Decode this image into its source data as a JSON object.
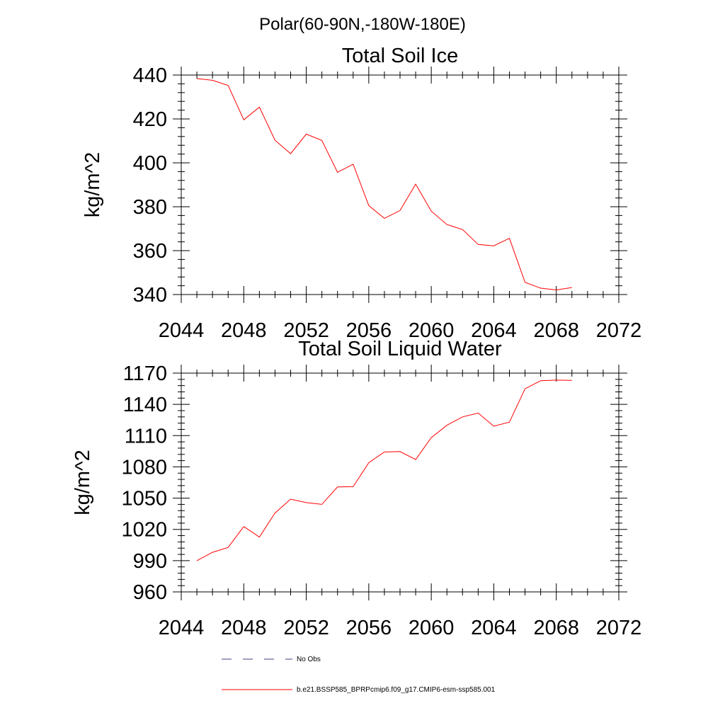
{
  "figure": {
    "suptitle": "Polar(60-90N,-180W-180E)"
  },
  "chart_data": [
    {
      "type": "line",
      "title": "Total Soil Ice",
      "xlabel": "",
      "ylabel": "kg/m^2",
      "xlim": [
        2044,
        2072
      ],
      "ylim": [
        340,
        440
      ],
      "xticks": [
        2044,
        2048,
        2052,
        2056,
        2060,
        2064,
        2068,
        2072
      ],
      "yticks": [
        340,
        360,
        380,
        400,
        420,
        440
      ],
      "grid": false,
      "series": [
        {
          "name": "b.e21.BSSP585_BPRPcmip6.f09_g17.CMIP6-esm-ssp585.001",
          "color": "#ff0000",
          "x": [
            2045,
            2046,
            2047,
            2048,
            2049,
            2050,
            2051,
            2052,
            2053,
            2054,
            2055,
            2056,
            2057,
            2058,
            2059,
            2060,
            2061,
            2062,
            2063,
            2064,
            2065,
            2066,
            2067,
            2068,
            2069
          ],
          "y": [
            438.4,
            437.6,
            435.3,
            419.6,
            425.4,
            410.3,
            404.2,
            413.1,
            410.2,
            395.7,
            399.4,
            380.5,
            374.7,
            378.3,
            390.3,
            378.0,
            371.9,
            369.6,
            362.8,
            362.2,
            365.6,
            345.5,
            342.9,
            342.1,
            343.2
          ]
        }
      ]
    },
    {
      "type": "line",
      "title": "Total Soil Liquid Water",
      "xlabel": "",
      "ylabel": "kg/m^2",
      "xlim": [
        2044,
        2072
      ],
      "ylim": [
        960,
        1170
      ],
      "xticks": [
        2044,
        2048,
        2052,
        2056,
        2060,
        2064,
        2068,
        2072
      ],
      "yticks": [
        960,
        990,
        1020,
        1050,
        1080,
        1110,
        1140,
        1170
      ],
      "grid": false,
      "series": [
        {
          "name": "b.e21.BSSP585_BPRPcmip6.f09_g17.CMIP6-esm-ssp585.001",
          "color": "#ff0000",
          "x": [
            2045,
            2046,
            2047,
            2048,
            2049,
            2050,
            2051,
            2052,
            2053,
            2054,
            2055,
            2056,
            2057,
            2058,
            2059,
            2060,
            2061,
            2062,
            2063,
            2064,
            2065,
            2066,
            2067,
            2068,
            2069
          ],
          "y": [
            990.0,
            998.0,
            1002.7,
            1022.7,
            1012.7,
            1035.7,
            1049.0,
            1045.7,
            1044.0,
            1060.7,
            1061.0,
            1084.0,
            1094.3,
            1094.7,
            1087.0,
            1108.0,
            1120.0,
            1128.0,
            1131.7,
            1119.0,
            1123.0,
            1155.0,
            1162.7,
            1163.3,
            1163.0
          ]
        }
      ]
    }
  ],
  "legend": {
    "placement": "bottom",
    "entries": [
      {
        "label": "No Obs",
        "style": "dashed",
        "color": "#3f3f7f"
      },
      {
        "label": "b.e21.BSSP585_BPRPcmip6.f09_g17.CMIP6-esm-ssp585.001",
        "style": "solid",
        "color": "#ff0000"
      }
    ]
  }
}
